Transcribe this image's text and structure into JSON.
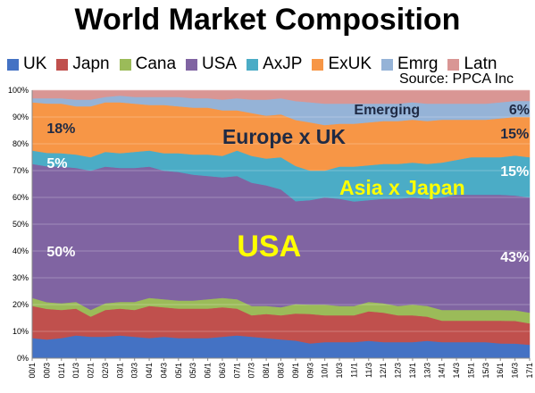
{
  "chart_data": {
    "type": "area",
    "stacked": true,
    "percent": true,
    "title": "World Market Composition",
    "source": "Source: PPCA Inc",
    "x": [
      "00/1",
      "00/3",
      "01/1",
      "01/3",
      "02/1",
      "02/3",
      "03/1",
      "03/3",
      "04/1",
      "04/3",
      "05/1",
      "05/3",
      "06/1",
      "06/3",
      "07/1",
      "07/3",
      "08/1",
      "08/3",
      "09/1",
      "09/3",
      "10/1",
      "10/3",
      "11/1",
      "11/3",
      "12/1",
      "12/3",
      "13/1",
      "13/3",
      "14/1",
      "14/3",
      "15/1",
      "15/3",
      "16/1",
      "16/3",
      "17/1"
    ],
    "ylim": [
      0,
      100
    ],
    "yticks": [
      "0%",
      "10%",
      "20%",
      "30%",
      "40%",
      "50%",
      "60%",
      "70%",
      "80%",
      "90%",
      "100%"
    ],
    "grid": true,
    "legend_position": "top",
    "series": [
      {
        "name": "UK",
        "color": "#4472C4",
        "values": [
          7.5,
          7,
          7.5,
          8.5,
          8,
          8,
          8.5,
          8,
          7.5,
          8,
          7.5,
          7.5,
          7.5,
          8,
          8.5,
          8,
          7.5,
          7,
          6.5,
          5.5,
          6,
          6,
          6,
          6.5,
          6,
          6,
          6,
          6.5,
          6,
          6,
          6,
          6,
          5.5,
          5.5,
          5
        ]
      },
      {
        "name": "Japn",
        "color": "#C0504D",
        "values": [
          12,
          11.5,
          10.5,
          10,
          7.5,
          10,
          10,
          10,
          12,
          11,
          11,
          11,
          11,
          11,
          10,
          8,
          9,
          9,
          10,
          11,
          10,
          10,
          10,
          11,
          11,
          10,
          10,
          9,
          8,
          8,
          8,
          8,
          8.5,
          8.5,
          8
        ]
      },
      {
        "name": "Cana",
        "color": "#9BBB59",
        "values": [
          3,
          2.5,
          2.5,
          2.5,
          2.5,
          2.5,
          2.5,
          3,
          3,
          3,
          3,
          3,
          3.5,
          3.5,
          3.5,
          3.5,
          3,
          3,
          3.5,
          3.5,
          4,
          3.5,
          3.5,
          3.5,
          3.5,
          3.5,
          4,
          4,
          4,
          4,
          4,
          4,
          4,
          4,
          4
        ]
      },
      {
        "name": "USA",
        "color": "#8064A2",
        "values": [
          50,
          51,
          51,
          50,
          52,
          51,
          50,
          50,
          49,
          48,
          48,
          47,
          46,
          45,
          46,
          46,
          45,
          44,
          38,
          39,
          40,
          40,
          39,
          38,
          39,
          40,
          40,
          40,
          42,
          43,
          43,
          43,
          43,
          43,
          43
        ]
      },
      {
        "name": "AxJP",
        "color": "#4BACC6",
        "values": [
          5,
          5,
          5,
          5,
          5,
          5.5,
          5.5,
          6,
          6,
          6.5,
          7,
          7.5,
          8,
          8,
          9.5,
          10,
          10,
          12,
          13,
          11,
          10,
          12,
          13,
          13,
          13,
          13,
          13,
          13,
          13,
          13,
          14,
          14,
          14,
          15,
          15
        ]
      },
      {
        "name": "ExUK",
        "color": "#F79646",
        "values": [
          18,
          18.5,
          18.5,
          18,
          19,
          18.5,
          19,
          18,
          17,
          18,
          17.5,
          17.5,
          17.5,
          17,
          15,
          16,
          16,
          16,
          17,
          18,
          17,
          16,
          16,
          16,
          16,
          16,
          16,
          16,
          16,
          15,
          14,
          14,
          14.5,
          14.5,
          15
        ]
      },
      {
        "name": "Emrg",
        "color": "#95B3D7",
        "values": [
          1.5,
          2,
          2,
          2.5,
          2.5,
          2,
          2.5,
          2.5,
          3,
          3,
          3.5,
          3.5,
          3.5,
          4,
          4.5,
          5,
          6,
          6,
          7,
          7.5,
          8,
          7.5,
          7.5,
          7,
          6.5,
          6.5,
          6.5,
          6.5,
          6,
          6,
          6,
          6,
          6,
          6,
          6
        ]
      },
      {
        "name": "Latn",
        "color": "#D99694",
        "values": [
          3,
          3,
          3,
          3.5,
          3.5,
          2.5,
          2,
          2.5,
          2.5,
          2.5,
          2.5,
          3,
          3,
          3.5,
          3,
          3.5,
          3.5,
          3,
          4,
          4.5,
          5,
          5,
          5,
          5,
          5,
          5,
          4.5,
          5,
          5,
          5,
          5,
          5,
          4.5,
          4,
          4
        ]
      }
    ],
    "annotations": [
      {
        "text": "Emerging",
        "x": "11/1",
        "y": 91,
        "color": "#1F2A44",
        "size": 16
      },
      {
        "text": "6%",
        "x": "17/1",
        "y": 91,
        "color": "#1F2A44",
        "size": 16,
        "align": "end"
      },
      {
        "text": "18%",
        "x": "00/3",
        "y": 84,
        "color": "#1F2A44",
        "size": 16
      },
      {
        "text": "Europe x UK",
        "x": "06/3",
        "y": 80,
        "color": "#1F2A44",
        "size": 23
      },
      {
        "text": "15%",
        "x": "16/1",
        "y": 82,
        "color": "#1F2A44",
        "size": 16
      },
      {
        "text": "5%",
        "x": "00/3",
        "y": 71,
        "color": "#ffffff",
        "size": 16
      },
      {
        "text": "15%",
        "x": "16/1",
        "y": 68,
        "color": "#ffffff",
        "size": 16
      },
      {
        "text": "Asia x Japan",
        "x": "10/3",
        "y": 61,
        "color": "#FFFF00",
        "size": 23
      },
      {
        "text": "USA",
        "x": "07/1",
        "y": 38,
        "color": "#FFFF00",
        "size": 34
      },
      {
        "text": "50%",
        "x": "00/3",
        "y": 38,
        "color": "#ffffff",
        "size": 16
      },
      {
        "text": "43%",
        "x": "16/1",
        "y": 36,
        "color": "#ffffff",
        "size": 16
      }
    ]
  }
}
